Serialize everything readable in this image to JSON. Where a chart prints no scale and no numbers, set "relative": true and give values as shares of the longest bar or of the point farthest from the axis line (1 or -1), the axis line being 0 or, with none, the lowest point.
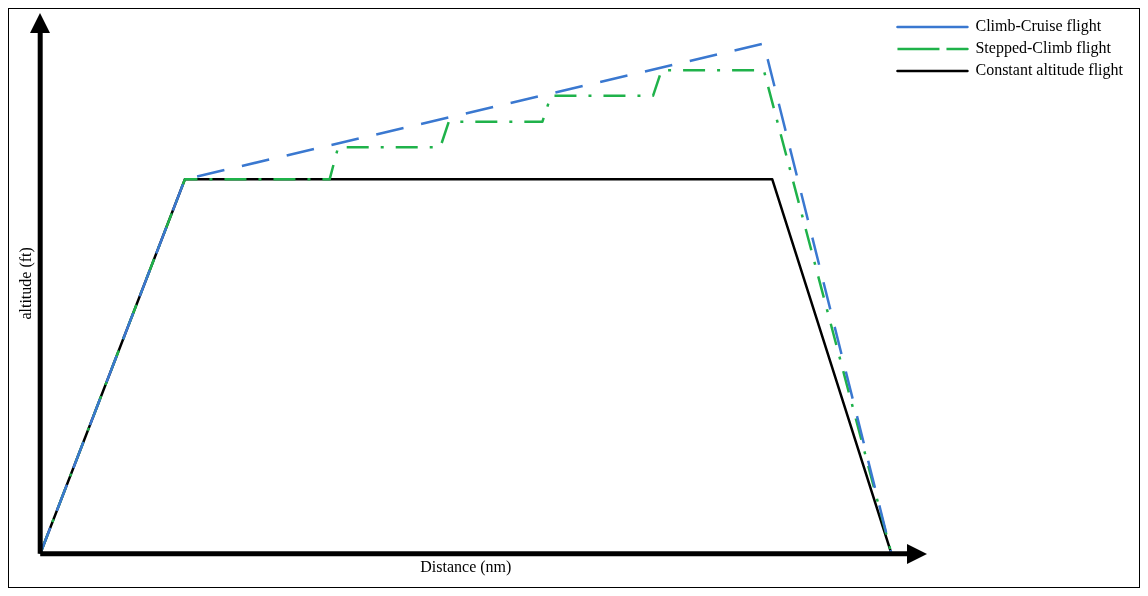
{
  "chart_data": {
    "type": "line",
    "relative": true,
    "xlabel": "Distance (nm)",
    "ylabel": "altitude (ft)",
    "legend": "top right",
    "grid": false,
    "marker": "none",
    "categories": [
      null,
      null,
      null,
      null,
      null,
      null,
      null,
      null,
      null,
      null,
      null,
      null,
      null,
      null,
      null,
      null,
      null,
      null,
      null,
      null,
      null,
      null,
      null,
      null,
      null,
      null,
      null,
      null,
      null,
      null,
      null,
      null,
      null,
      null,
      null,
      null,
      null,
      null,
      null,
      null,
      null,
      null,
      null,
      null,
      null,
      null,
      null,
      null,
      null,
      null,
      null,
      null,
      null,
      null,
      null,
      null,
      null,
      null,
      null,
      null,
      null,
      null,
      null,
      null,
      null,
      null,
      null,
      null,
      null,
      null,
      null,
      null,
      null,
      null,
      null,
      null,
      null,
      null,
      null,
      null,
      null,
      null,
      null,
      null,
      null,
      null,
      null,
      null,
      null,
      null,
      null,
      null,
      null,
      null,
      null,
      null,
      null,
      null,
      null,
      null,
      null
    ],
    "series": [
      {
        "name": "Climb-Cruise flight",
        "color": "#3a78d0",
        "line_style": "dashed",
        "values": [
          0,
          null,
          null,
          null,
          null,
          null,
          null,
          null,
          null,
          null,
          null,
          null,
          null,
          null,
          null,
          null,
          null,
          0.734,
          null,
          null,
          null,
          null,
          null,
          null,
          null,
          null,
          null,
          null,
          null,
          null,
          null,
          null,
          null,
          null,
          null,
          null,
          null,
          null,
          null,
          null,
          null,
          null,
          null,
          null,
          null,
          null,
          null,
          null,
          null,
          null,
          null,
          null,
          null,
          null,
          null,
          null,
          null,
          null,
          null,
          null,
          null,
          null,
          null,
          null,
          null,
          null,
          null,
          null,
          null,
          null,
          null,
          null,
          null,
          null,
          null,
          null,
          null,
          null,
          null,
          null,
          null,
          null,
          null,
          null,
          null,
          1,
          null,
          null,
          null,
          null,
          null,
          null,
          null,
          null,
          null,
          null,
          null,
          null,
          null,
          null,
          0
        ]
      },
      {
        "name": "Stepped-Climb flight",
        "color": "#1fb24a",
        "line_style": "dashdot",
        "values": [
          0,
          null,
          null,
          null,
          null,
          null,
          null,
          null,
          null,
          null,
          null,
          null,
          null,
          null,
          null,
          null,
          null,
          0.734,
          null,
          null,
          null,
          null,
          null,
          null,
          null,
          null,
          null,
          null,
          null,
          null,
          null,
          null,
          null,
          null,
          0.734,
          0.797,
          null,
          null,
          null,
          null,
          null,
          null,
          null,
          null,
          null,
          null,
          null,
          0.797,
          0.847,
          null,
          null,
          null,
          null,
          null,
          null,
          null,
          null,
          null,
          null,
          0.847,
          0.898,
          null,
          null,
          null,
          null,
          null,
          null,
          null,
          null,
          null,
          null,
          null,
          0.898,
          0.948,
          null,
          null,
          null,
          null,
          null,
          null,
          null,
          null,
          null,
          null,
          null,
          0.948,
          null,
          null,
          null,
          null,
          null,
          null,
          null,
          null,
          null,
          null,
          null,
          null,
          null,
          null,
          0
        ]
      },
      {
        "name": "Constant altitude flight",
        "color": "#000000",
        "line_style": "solid",
        "values": [
          0,
          null,
          null,
          null,
          null,
          null,
          null,
          null,
          null,
          null,
          null,
          null,
          null,
          null,
          null,
          null,
          null,
          0.734,
          null,
          null,
          null,
          null,
          null,
          null,
          null,
          null,
          null,
          null,
          null,
          null,
          null,
          null,
          null,
          null,
          null,
          null,
          null,
          null,
          null,
          null,
          null,
          null,
          null,
          null,
          null,
          null,
          null,
          null,
          null,
          null,
          null,
          null,
          null,
          null,
          null,
          null,
          null,
          null,
          null,
          null,
          null,
          null,
          null,
          null,
          null,
          null,
          null,
          null,
          null,
          null,
          null,
          null,
          null,
          null,
          null,
          null,
          null,
          null,
          null,
          null,
          null,
          null,
          null,
          null,
          null,
          null,
          0.734,
          null,
          null,
          null,
          null,
          null,
          null,
          null,
          null,
          null,
          null,
          null,
          null,
          null,
          0
        ]
      }
    ]
  }
}
